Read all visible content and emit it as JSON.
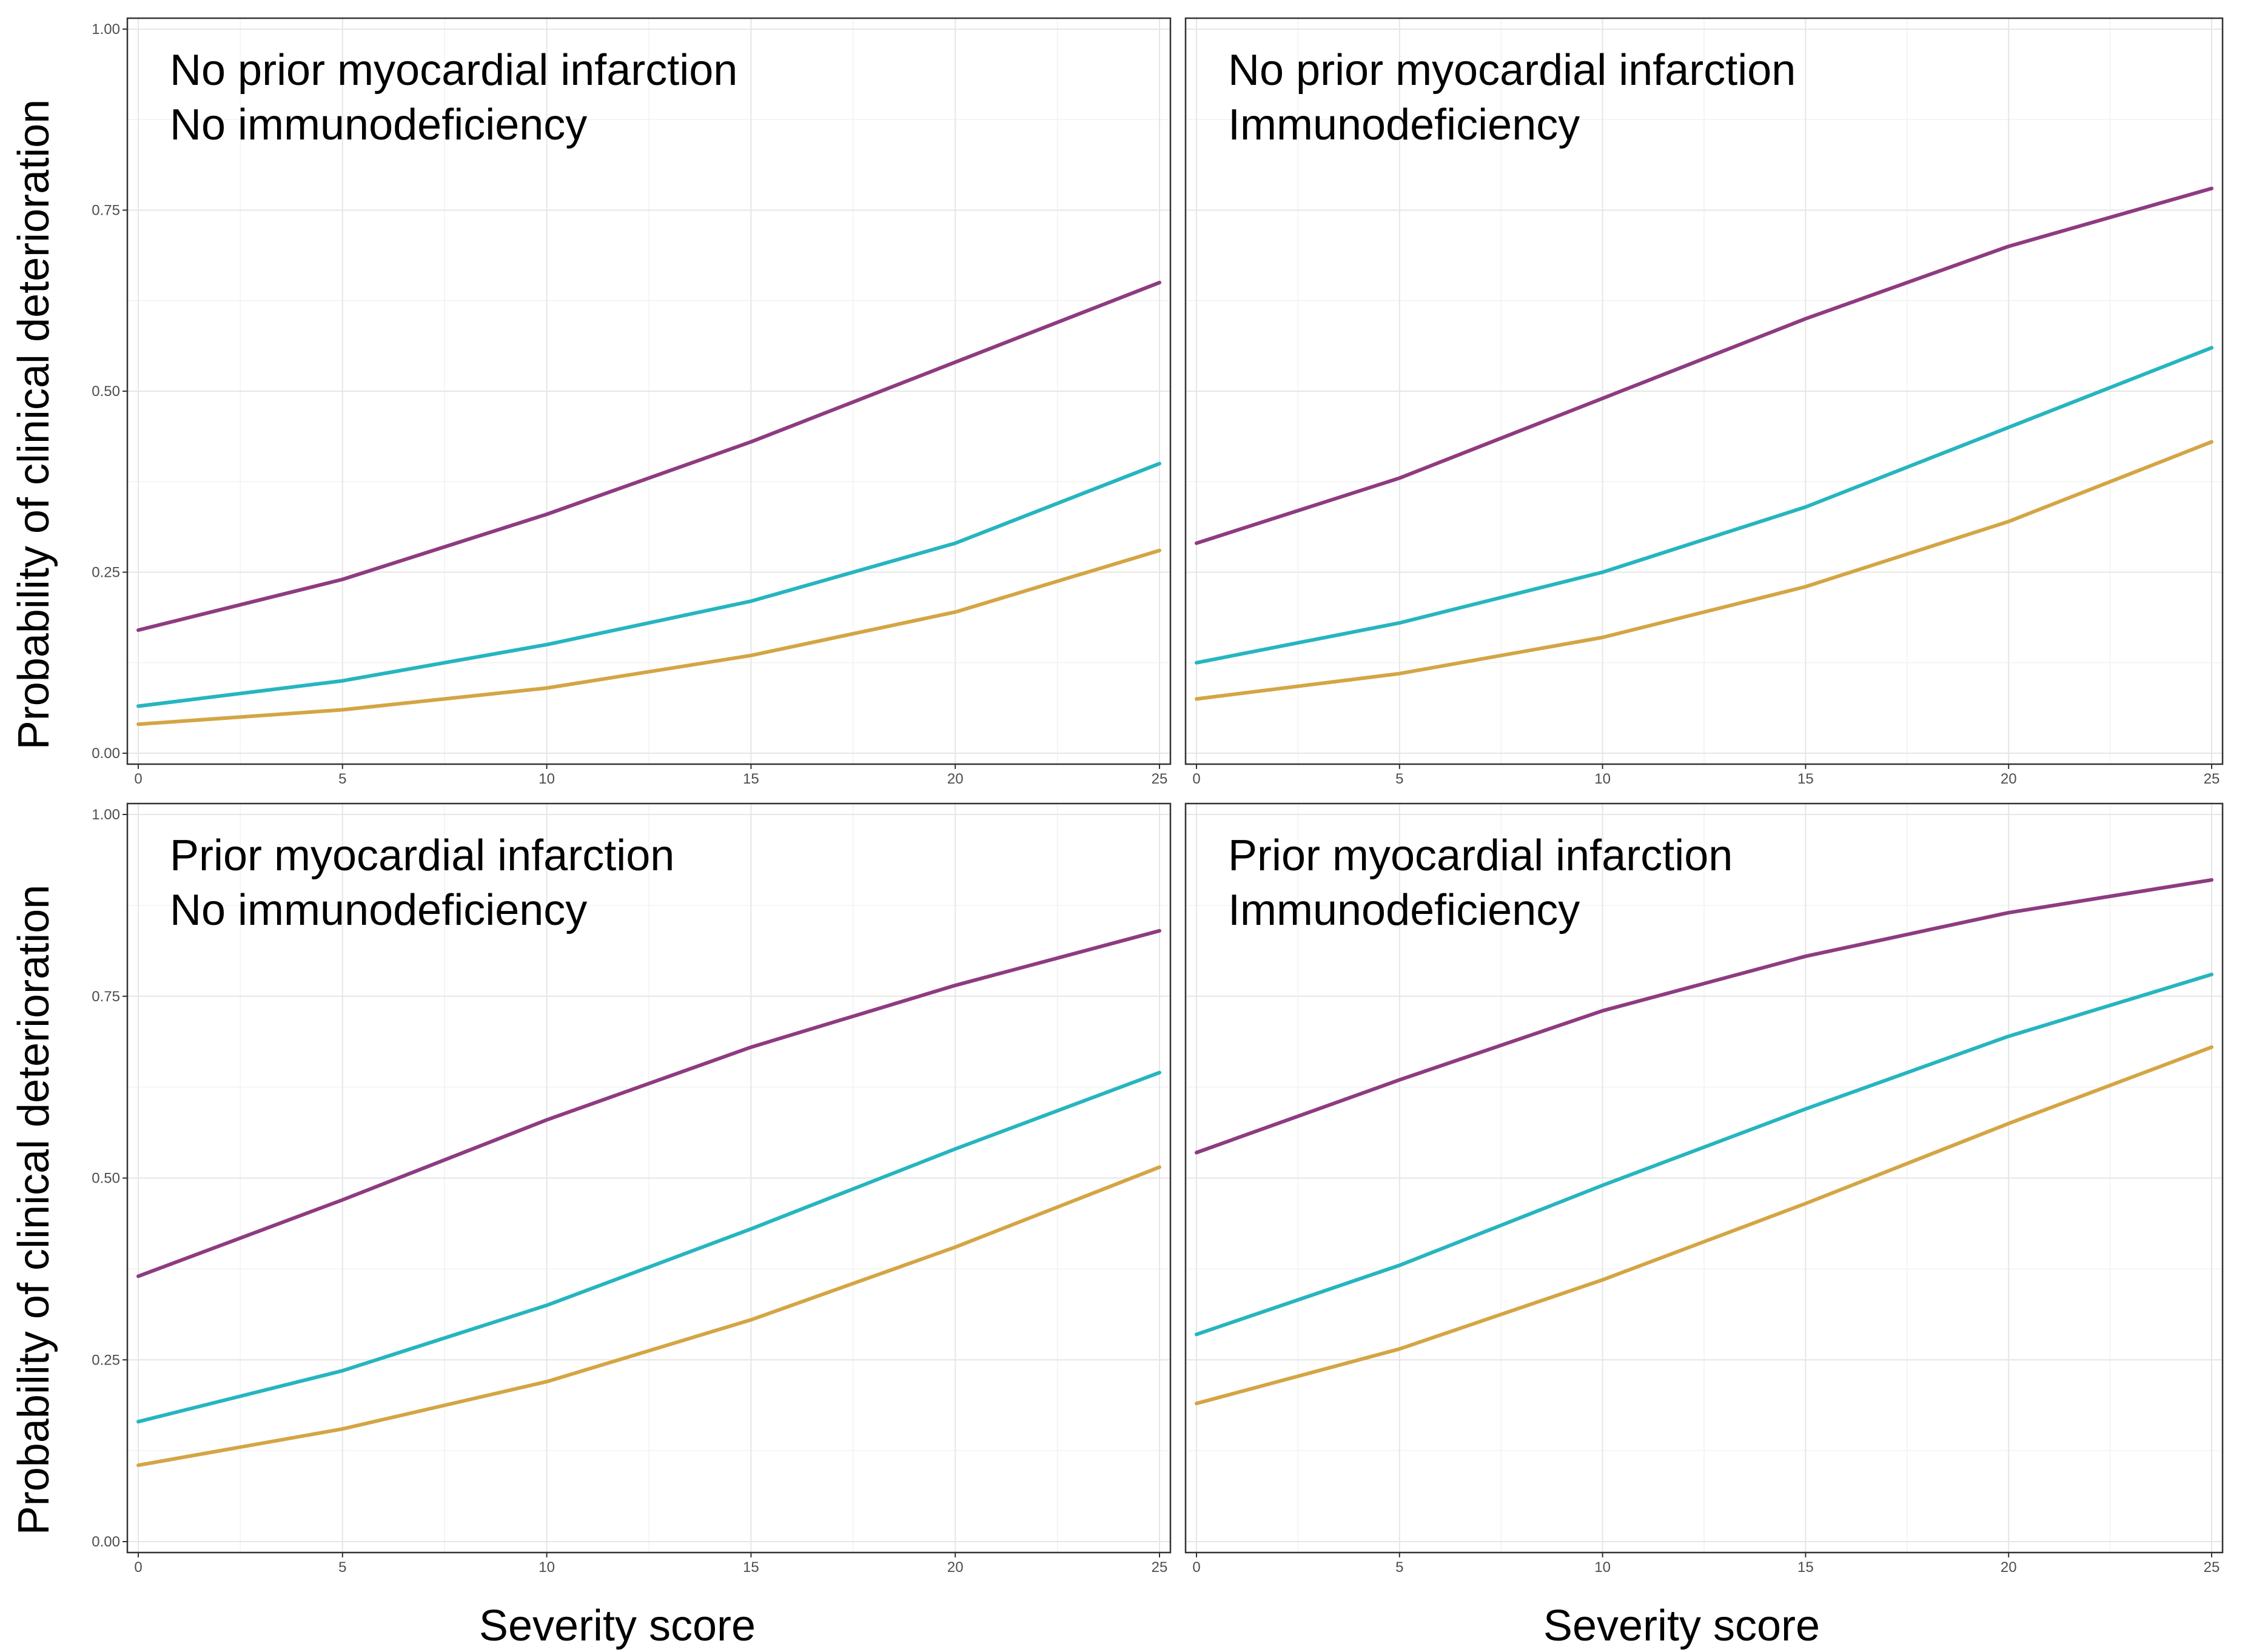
{
  "chart_data": [
    {
      "type": "line",
      "title": "",
      "annotation": [
        "No prior myocardial infarction",
        "No immunodeficiency"
      ],
      "xlabel": "",
      "ylabel": "Probability of clinical deterioration",
      "xlim": [
        0,
        25
      ],
      "ylim": [
        0,
        1
      ],
      "xticks": [
        0,
        5,
        10,
        15,
        20,
        25
      ],
      "yticks": [
        "0.00",
        "0.25",
        "0.50",
        "0.75",
        "1.00"
      ],
      "x": [
        0,
        5,
        10,
        15,
        20,
        25
      ],
      "series": [
        {
          "name": "purple",
          "color": "#8e3b80",
          "values": [
            0.17,
            0.24,
            0.33,
            0.43,
            0.54,
            0.65
          ]
        },
        {
          "name": "teal",
          "color": "#26b5c0",
          "values": [
            0.065,
            0.1,
            0.15,
            0.21,
            0.29,
            0.4
          ]
        },
        {
          "name": "gold",
          "color": "#d4a544",
          "values": [
            0.04,
            0.06,
            0.09,
            0.135,
            0.195,
            0.28
          ]
        }
      ]
    },
    {
      "type": "line",
      "title": "",
      "annotation": [
        "No prior myocardial infarction",
        "Immunodeficiency"
      ],
      "xlabel": "",
      "ylabel": "",
      "xlim": [
        0,
        25
      ],
      "ylim": [
        0,
        1
      ],
      "xticks": [
        0,
        5,
        10,
        15,
        20,
        25
      ],
      "yticks": [],
      "x": [
        0,
        5,
        10,
        15,
        20,
        25
      ],
      "series": [
        {
          "name": "purple",
          "color": "#8e3b80",
          "values": [
            0.29,
            0.38,
            0.49,
            0.6,
            0.7,
            0.78
          ]
        },
        {
          "name": "teal",
          "color": "#26b5c0",
          "values": [
            0.125,
            0.18,
            0.25,
            0.34,
            0.45,
            0.56
          ]
        },
        {
          "name": "gold",
          "color": "#d4a544",
          "values": [
            0.075,
            0.11,
            0.16,
            0.23,
            0.32,
            0.43
          ]
        }
      ]
    },
    {
      "type": "line",
      "title": "",
      "annotation": [
        "Prior myocardial infarction",
        "No immunodeficiency"
      ],
      "xlabel": "Severity score",
      "ylabel": "Probability of clinical deterioration",
      "xlim": [
        0,
        25
      ],
      "ylim": [
        0,
        1
      ],
      "xticks": [
        0,
        5,
        10,
        15,
        20,
        25
      ],
      "yticks": [
        "0.00",
        "0.25",
        "0.50",
        "0.75",
        "1.00"
      ],
      "x": [
        0,
        5,
        10,
        15,
        20,
        25
      ],
      "series": [
        {
          "name": "purple",
          "color": "#8e3b80",
          "values": [
            0.365,
            0.47,
            0.58,
            0.68,
            0.765,
            0.84
          ]
        },
        {
          "name": "teal",
          "color": "#26b5c0",
          "values": [
            0.165,
            0.235,
            0.325,
            0.43,
            0.54,
            0.645
          ]
        },
        {
          "name": "gold",
          "color": "#d4a544",
          "values": [
            0.105,
            0.155,
            0.22,
            0.305,
            0.405,
            0.515
          ]
        }
      ]
    },
    {
      "type": "line",
      "title": "",
      "annotation": [
        "Prior myocardial infarction",
        "Immunodeficiency"
      ],
      "xlabel": "Severity score",
      "ylabel": "",
      "xlim": [
        0,
        25
      ],
      "ylim": [
        0,
        1
      ],
      "xticks": [
        0,
        5,
        10,
        15,
        20,
        25
      ],
      "yticks": [],
      "x": [
        0,
        5,
        10,
        15,
        20,
        25
      ],
      "series": [
        {
          "name": "purple",
          "color": "#8e3b80",
          "values": [
            0.535,
            0.635,
            0.73,
            0.805,
            0.865,
            0.91
          ]
        },
        {
          "name": "teal",
          "color": "#26b5c0",
          "values": [
            0.285,
            0.38,
            0.49,
            0.595,
            0.695,
            0.78
          ]
        },
        {
          "name": "gold",
          "color": "#d4a544",
          "values": [
            0.19,
            0.265,
            0.36,
            0.465,
            0.575,
            0.68
          ]
        }
      ]
    }
  ]
}
